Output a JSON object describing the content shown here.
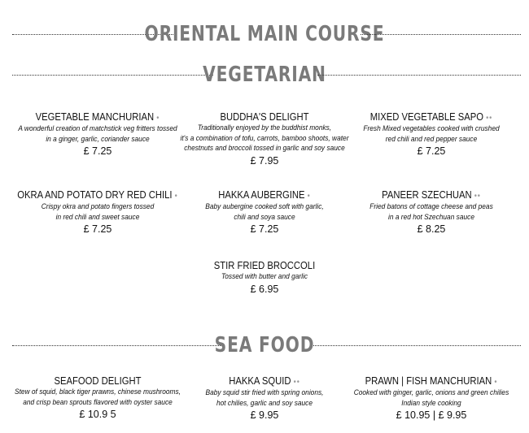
{
  "headings": {
    "main": "ORIENTAL MAIN COURSE",
    "veg": "VEGETARIAN",
    "sea": "SEA FOOD"
  },
  "veg": [
    {
      "name": "VEGETABLE MANCHURIAN",
      "spice": "•",
      "desc": [
        "A wonderful creation of matchstick veg fritters tossed",
        "in a ginger, garlic, coriander sauce"
      ],
      "price": "£ 7.25"
    },
    {
      "name": "BUDDHA'S DELIGHT",
      "spice": "",
      "desc": [
        "Traditionally enjoyed by the buddhist monks,",
        "it's a combination of tofu, carrots, bamboo shoots, water",
        "chestnuts and broccoli tossed in garlic and soy sauce"
      ],
      "price": "£ 7.95"
    },
    {
      "name": "MIXED VEGETABLE SAPO",
      "spice": "••",
      "desc": [
        "Fresh Mixed vegetables cooked with crushed",
        "red chili and red pepper sauce"
      ],
      "price": "£ 7.25"
    },
    {
      "name": "OKRA AND POTATO DRY RED CHILI",
      "spice": "•",
      "desc": [
        "Crispy okra and potato fingers tossed",
        "in red chili and sweet sauce"
      ],
      "price": "£ 7.25"
    },
    {
      "name": "HAKKA AUBERGINE",
      "spice": "•",
      "desc": [
        "Baby aubergine cooked soft with garlic,",
        "chili and soya sauce"
      ],
      "price": "£ 7.25"
    },
    {
      "name": "PANEER SZECHUAN",
      "spice": "••",
      "desc": [
        "Fried batons of cottage cheese and peas",
        "in a red hot Szechuan sauce"
      ],
      "price": "£ 8.25"
    },
    {
      "name": "STIR FRIED BROCCOLI",
      "spice": "",
      "desc": [
        "Tossed with butter and garlic"
      ],
      "price": "£ 6.95"
    }
  ],
  "sea": [
    {
      "name": "SEAFOOD DELIGHT",
      "spice": "",
      "desc": [
        "Stew of squid, black tiger prawns, chinese mushrooms,",
        "and crisp bean sprouts flavored with oyster sauce"
      ],
      "price": "£ 10.9 5"
    },
    {
      "name": "HAKKA SQUID",
      "spice": "••",
      "desc": [
        "Baby squid stir fried with spring onions,",
        "hot chilies, garlic and soy sauce"
      ],
      "price": "£ 9.95"
    },
    {
      "name": "PRAWN | FISH MANCHURIAN",
      "spice": "•",
      "desc": [
        "Cooked with ginger, garlic, onions and green chilies",
        "Indian style cooking"
      ],
      "price": "£ 10.95 | £ 9.95"
    }
  ]
}
